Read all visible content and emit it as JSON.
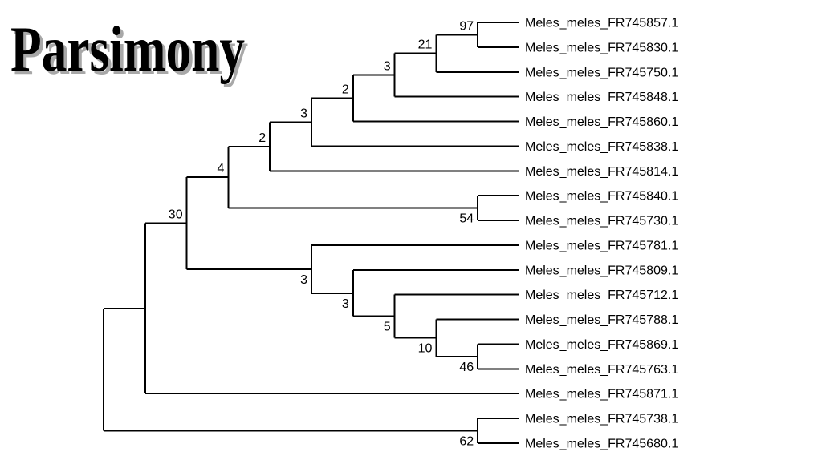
{
  "title": "Parsimony",
  "colors": {
    "background": "#ffffff",
    "branch": "#000000",
    "taxon_text": "#000000",
    "support_text": "#000000",
    "title_text": "#000000",
    "title_shadow": "#a8a8a8"
  },
  "chart_data": {
    "type": "cladogram",
    "title": "Parsimony",
    "orientation": "left-to-right",
    "taxa": [
      "Meles_meles_FR745857.1",
      "Meles_meles_FR745830.1",
      "Meles_meles_FR745750.1",
      "Meles_meles_FR745848.1",
      "Meles_meles_FR745860.1",
      "Meles_meles_FR745838.1",
      "Meles_meles_FR745814.1",
      "Meles_meles_FR745840.1",
      "Meles_meles_FR745730.1",
      "Meles_meles_FR745781.1",
      "Meles_meles_FR745809.1",
      "Meles_meles_FR745712.1",
      "Meles_meles_FR745788.1",
      "Meles_meles_FR745869.1",
      "Meles_meles_FR745763.1",
      "Meles_meles_FR745871.1",
      "Meles_meles_FR745738.1",
      "Meles_meles_FR745680.1"
    ],
    "support_values_shown": [
      "97",
      "21",
      "3",
      "2",
      "3",
      "2",
      "4",
      "30",
      "54",
      "3",
      "3",
      "5",
      "10",
      "46",
      "62"
    ],
    "root": {
      "support": null,
      "children": [
        {
          "support": null,
          "children": [
            {
              "support": "30",
              "children": [
                {
                  "support": "4",
                  "children": [
                    {
                      "support": "2",
                      "children": [
                        {
                          "support": "3",
                          "children": [
                            {
                              "support": "2",
                              "children": [
                                {
                                  "support": "3",
                                  "children": [
                                    {
                                      "support": "21",
                                      "children": [
                                        {
                                          "support": "97",
                                          "children": [
                                            {
                                              "taxon": "Meles_meles_FR745857.1"
                                            },
                                            {
                                              "taxon": "Meles_meles_FR745830.1"
                                            }
                                          ]
                                        },
                                        {
                                          "taxon": "Meles_meles_FR745750.1"
                                        }
                                      ]
                                    },
                                    {
                                      "taxon": "Meles_meles_FR745848.1"
                                    }
                                  ]
                                },
                                {
                                  "taxon": "Meles_meles_FR745860.1"
                                }
                              ]
                            },
                            {
                              "taxon": "Meles_meles_FR745838.1"
                            }
                          ]
                        },
                        {
                          "taxon": "Meles_meles_FR745814.1"
                        }
                      ]
                    },
                    {
                      "support": "54",
                      "children": [
                        {
                          "taxon": "Meles_meles_FR745840.1"
                        },
                        {
                          "taxon": "Meles_meles_FR745730.1"
                        }
                      ]
                    }
                  ]
                },
                {
                  "support": "3",
                  "children": [
                    {
                      "taxon": "Meles_meles_FR745781.1"
                    },
                    {
                      "support": "3",
                      "children": [
                        {
                          "taxon": "Meles_meles_FR745809.1"
                        },
                        {
                          "support": "5",
                          "children": [
                            {
                              "taxon": "Meles_meles_FR745712.1"
                            },
                            {
                              "support": "10",
                              "children": [
                                {
                                  "taxon": "Meles_meles_FR745788.1"
                                },
                                {
                                  "support": "46",
                                  "children": [
                                    {
                                      "taxon": "Meles_meles_FR745869.1"
                                    },
                                    {
                                      "taxon": "Meles_meles_FR745763.1"
                                    }
                                  ]
                                }
                              ]
                            }
                          ]
                        }
                      ]
                    }
                  ]
                }
              ]
            },
            {
              "taxon": "Meles_meles_FR745871.1"
            }
          ]
        },
        {
          "support": "62",
          "children": [
            {
              "taxon": "Meles_meles_FR745738.1"
            },
            {
              "taxon": "Meles_meles_FR745680.1"
            }
          ]
        }
      ]
    }
  }
}
